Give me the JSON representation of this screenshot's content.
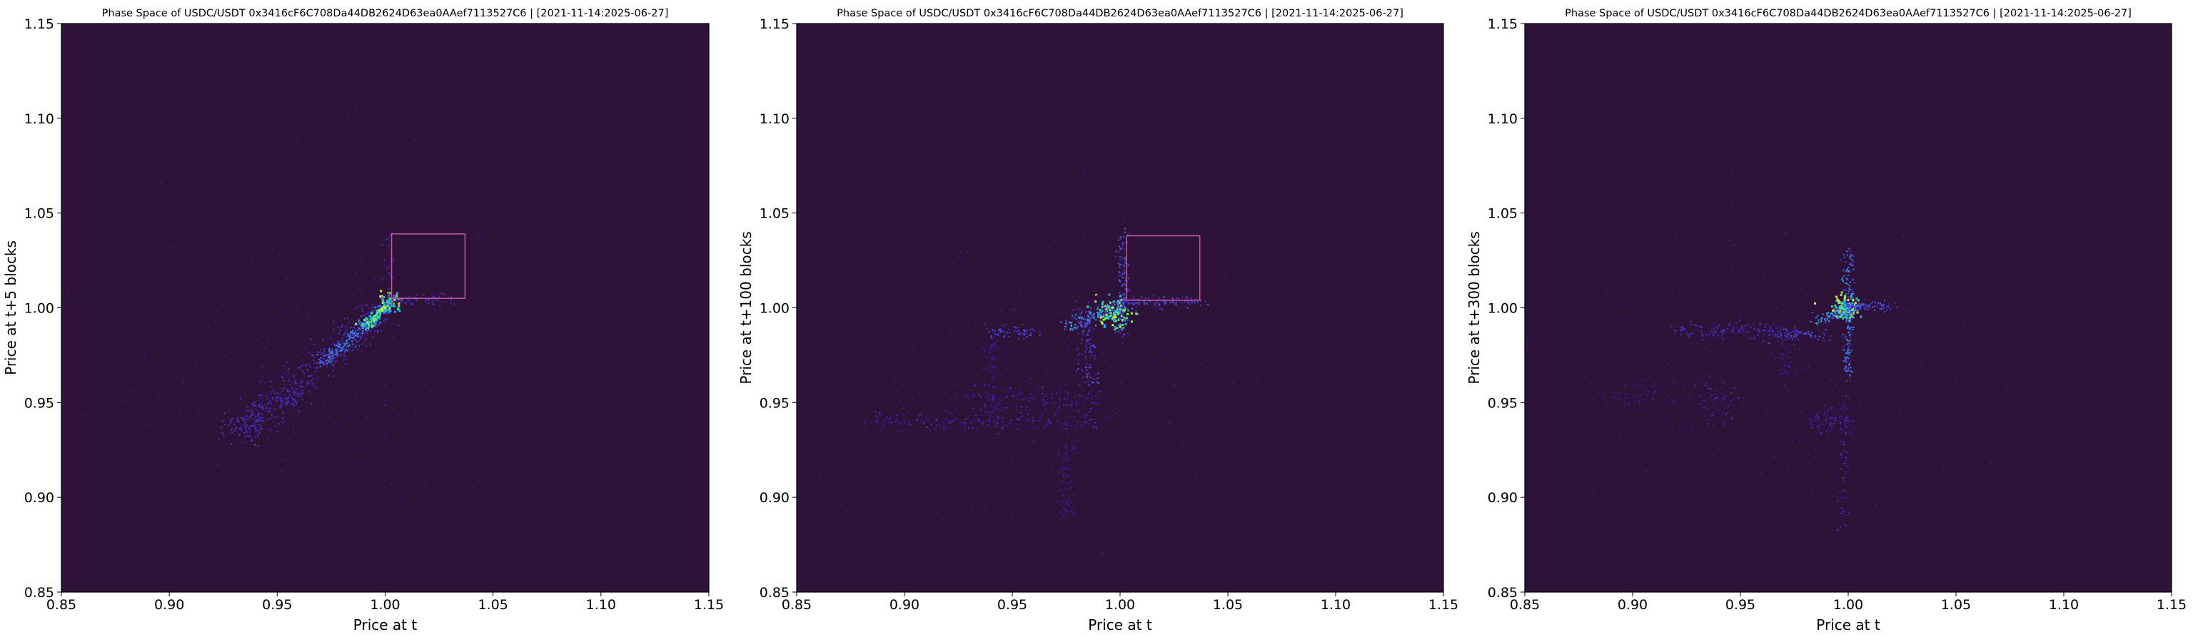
{
  "figure": {
    "background": "#ffffff",
    "plot_background": "#2f1238",
    "colormap": [
      "#3b1a9e",
      "#4433c9",
      "#4a5ee6",
      "#2e97f0",
      "#18c8cf",
      "#3ae38f",
      "#9cf04d",
      "#e6e43a"
    ],
    "highlight_box_color": "#c05a9a"
  },
  "chart_data": [
    {
      "type": "heatmap",
      "title": "Phase Space of USDC/USDT 0x3416cF6C708Da44DB2624D63ea0AAef7113527C6 | [2021-11-14:2025-06-27]",
      "xlabel": "Price at t",
      "ylabel": "Price at t+5 blocks",
      "xlim": [
        0.85,
        1.15
      ],
      "ylim": [
        0.85,
        1.15
      ],
      "xticks": [
        "0.85",
        "0.90",
        "0.95",
        "1.00",
        "1.05",
        "1.10",
        "1.15"
      ],
      "yticks": [
        "0.85",
        "0.90",
        "0.95",
        "1.00",
        "1.05",
        "1.10",
        "1.15"
      ],
      "grid": false,
      "highlight_box": {
        "x": [
          1.003,
          1.037
        ],
        "y": [
          1.005,
          1.039
        ]
      },
      "clusters": [
        {
          "shape": "line",
          "from": [
            0.93,
            0.933
          ],
          "to": [
            1.0,
            1.0
          ],
          "spread": 0.004,
          "count": 420,
          "level": 0.2
        },
        {
          "shape": "line",
          "from": [
            0.97,
            0.97
          ],
          "to": [
            1.002,
            1.002
          ],
          "spread": 0.002,
          "count": 260,
          "level": 0.45
        },
        {
          "shape": "line",
          "from": [
            0.99,
            0.99
          ],
          "to": [
            1.003,
            1.003
          ],
          "spread": 0.0012,
          "count": 120,
          "level": 0.85
        },
        {
          "shape": "blob",
          "center": [
            0.94,
            0.94
          ],
          "spread": [
            0.006,
            0.005
          ],
          "count": 70,
          "level": 0.25
        },
        {
          "shape": "blob",
          "center": [
            0.955,
            0.953
          ],
          "spread": [
            0.006,
            0.005
          ],
          "count": 60,
          "level": 0.2
        },
        {
          "shape": "blob",
          "center": [
            1.002,
            1.003
          ],
          "spread": [
            0.003,
            0.003
          ],
          "count": 40,
          "level": 1.0
        },
        {
          "shape": "line",
          "from": [
            1.0,
            1.004
          ],
          "to": [
            1.03,
            1.004
          ],
          "spread": 0.002,
          "count": 80,
          "level": 0.2
        },
        {
          "shape": "line",
          "from": [
            1.002,
            1.0
          ],
          "to": [
            1.002,
            1.045
          ],
          "spread": 0.0015,
          "count": 40,
          "level": 0.15
        },
        {
          "shape": "scatter",
          "center": [
            0.97,
            0.97
          ],
          "spread": [
            0.05,
            0.05
          ],
          "count": 220,
          "level": 0.08
        }
      ]
    },
    {
      "type": "heatmap",
      "title": "Phase Space of USDC/USDT 0x3416cF6C708Da44DB2624D63ea0AAef7113527C6 | [2021-11-14:2025-06-27]",
      "xlabel": "Price at t",
      "ylabel": "Price at t+100 blocks",
      "xlim": [
        0.85,
        1.15
      ],
      "ylim": [
        0.85,
        1.15
      ],
      "xticks": [
        "0.85",
        "0.90",
        "0.95",
        "1.00",
        "1.05",
        "1.10",
        "1.15"
      ],
      "yticks": [
        "0.85",
        "0.90",
        "0.95",
        "1.00",
        "1.05",
        "1.10",
        "1.15"
      ],
      "grid": false,
      "highlight_box": {
        "x": [
          1.003,
          1.037
        ],
        "y": [
          1.004,
          1.038
        ]
      },
      "clusters": [
        {
          "shape": "blob",
          "center": [
            0.997,
            0.997
          ],
          "spread": [
            0.004,
            0.004
          ],
          "count": 120,
          "level": 0.95
        },
        {
          "shape": "line",
          "from": [
            0.975,
            0.99
          ],
          "to": [
            1.002,
            1.001
          ],
          "spread": 0.002,
          "count": 140,
          "level": 0.55
        },
        {
          "shape": "line",
          "from": [
            1.001,
            0.985
          ],
          "to": [
            1.001,
            1.04
          ],
          "spread": 0.0015,
          "count": 120,
          "level": 0.35
        },
        {
          "shape": "line",
          "from": [
            1.0,
            1.003
          ],
          "to": [
            1.04,
            1.003
          ],
          "spread": 0.0015,
          "count": 110,
          "level": 0.3
        },
        {
          "shape": "line",
          "from": [
            0.985,
            0.96
          ],
          "to": [
            0.985,
            1.0
          ],
          "spread": 0.003,
          "count": 120,
          "level": 0.3
        },
        {
          "shape": "line",
          "from": [
            0.94,
            0.987
          ],
          "to": [
            0.962,
            0.987
          ],
          "spread": 0.002,
          "count": 60,
          "level": 0.3
        },
        {
          "shape": "line",
          "from": [
            0.88,
            0.94
          ],
          "to": [
            0.99,
            0.94
          ],
          "spread": 0.003,
          "count": 200,
          "level": 0.15
        },
        {
          "shape": "line",
          "from": [
            0.93,
            0.952
          ],
          "to": [
            0.99,
            0.952
          ],
          "spread": 0.003,
          "count": 130,
          "level": 0.15
        },
        {
          "shape": "line",
          "from": [
            0.975,
            0.89
          ],
          "to": [
            0.975,
            0.935
          ],
          "spread": 0.002,
          "count": 80,
          "level": 0.12
        },
        {
          "shape": "line",
          "from": [
            0.94,
            0.94
          ],
          "to": [
            0.94,
            0.985
          ],
          "spread": 0.002,
          "count": 70,
          "level": 0.12
        },
        {
          "shape": "scatter",
          "center": [
            0.96,
            0.96
          ],
          "spread": [
            0.05,
            0.04
          ],
          "count": 200,
          "level": 0.08
        }
      ]
    },
    {
      "type": "heatmap",
      "title": "Phase Space of USDC/USDT 0x3416cF6C708Da44DB2624D63ea0AAef7113527C6 | [2021-11-14:2025-06-27]",
      "xlabel": "Price at t",
      "ylabel": "Price at t+300 blocks",
      "xlim": [
        0.85,
        1.15
      ],
      "ylim": [
        0.85,
        1.15
      ],
      "xticks": [
        "0.85",
        "0.90",
        "0.95",
        "1.00",
        "1.05",
        "1.10",
        "1.15"
      ],
      "yticks": [
        "0.85",
        "0.90",
        "0.95",
        "1.00",
        "1.05",
        "1.10",
        "1.15"
      ],
      "grid": false,
      "clusters": [
        {
          "shape": "blob",
          "center": [
            0.999,
            1.0
          ],
          "spread": [
            0.003,
            0.003
          ],
          "count": 120,
          "level": 1.0
        },
        {
          "shape": "line",
          "from": [
            1.0,
            0.965
          ],
          "to": [
            1.0,
            1.03
          ],
          "spread": 0.0012,
          "count": 180,
          "level": 0.45
        },
        {
          "shape": "line",
          "from": [
            1.0,
            1.001
          ],
          "to": [
            1.02,
            1.001
          ],
          "spread": 0.0012,
          "count": 100,
          "level": 0.35
        },
        {
          "shape": "line",
          "from": [
            0.985,
            0.994
          ],
          "to": [
            1.0,
            0.998
          ],
          "spread": 0.002,
          "count": 90,
          "level": 0.55
        },
        {
          "shape": "line",
          "from": [
            0.965,
            0.986
          ],
          "to": [
            0.99,
            0.986
          ],
          "spread": 0.002,
          "count": 80,
          "level": 0.3
        },
        {
          "shape": "line",
          "from": [
            0.92,
            0.988
          ],
          "to": [
            0.965,
            0.988
          ],
          "spread": 0.002,
          "count": 120,
          "level": 0.2
        },
        {
          "shape": "line",
          "from": [
            0.998,
            0.88
          ],
          "to": [
            0.998,
            0.96
          ],
          "spread": 0.0015,
          "count": 70,
          "level": 0.15
        },
        {
          "shape": "blob",
          "center": [
            0.94,
            0.95
          ],
          "spread": [
            0.005,
            0.006
          ],
          "count": 60,
          "level": 0.15
        },
        {
          "shape": "blob",
          "center": [
            0.99,
            0.94
          ],
          "spread": [
            0.006,
            0.004
          ],
          "count": 70,
          "level": 0.15
        },
        {
          "shape": "blob",
          "center": [
            0.905,
            0.955
          ],
          "spread": [
            0.01,
            0.005
          ],
          "count": 60,
          "level": 0.12
        },
        {
          "shape": "line",
          "from": [
            0.97,
            0.96
          ],
          "to": [
            0.97,
            0.985
          ],
          "spread": 0.002,
          "count": 40,
          "level": 0.12
        },
        {
          "shape": "scatter",
          "center": [
            0.97,
            0.97
          ],
          "spread": [
            0.05,
            0.04
          ],
          "count": 180,
          "level": 0.08
        }
      ]
    }
  ]
}
